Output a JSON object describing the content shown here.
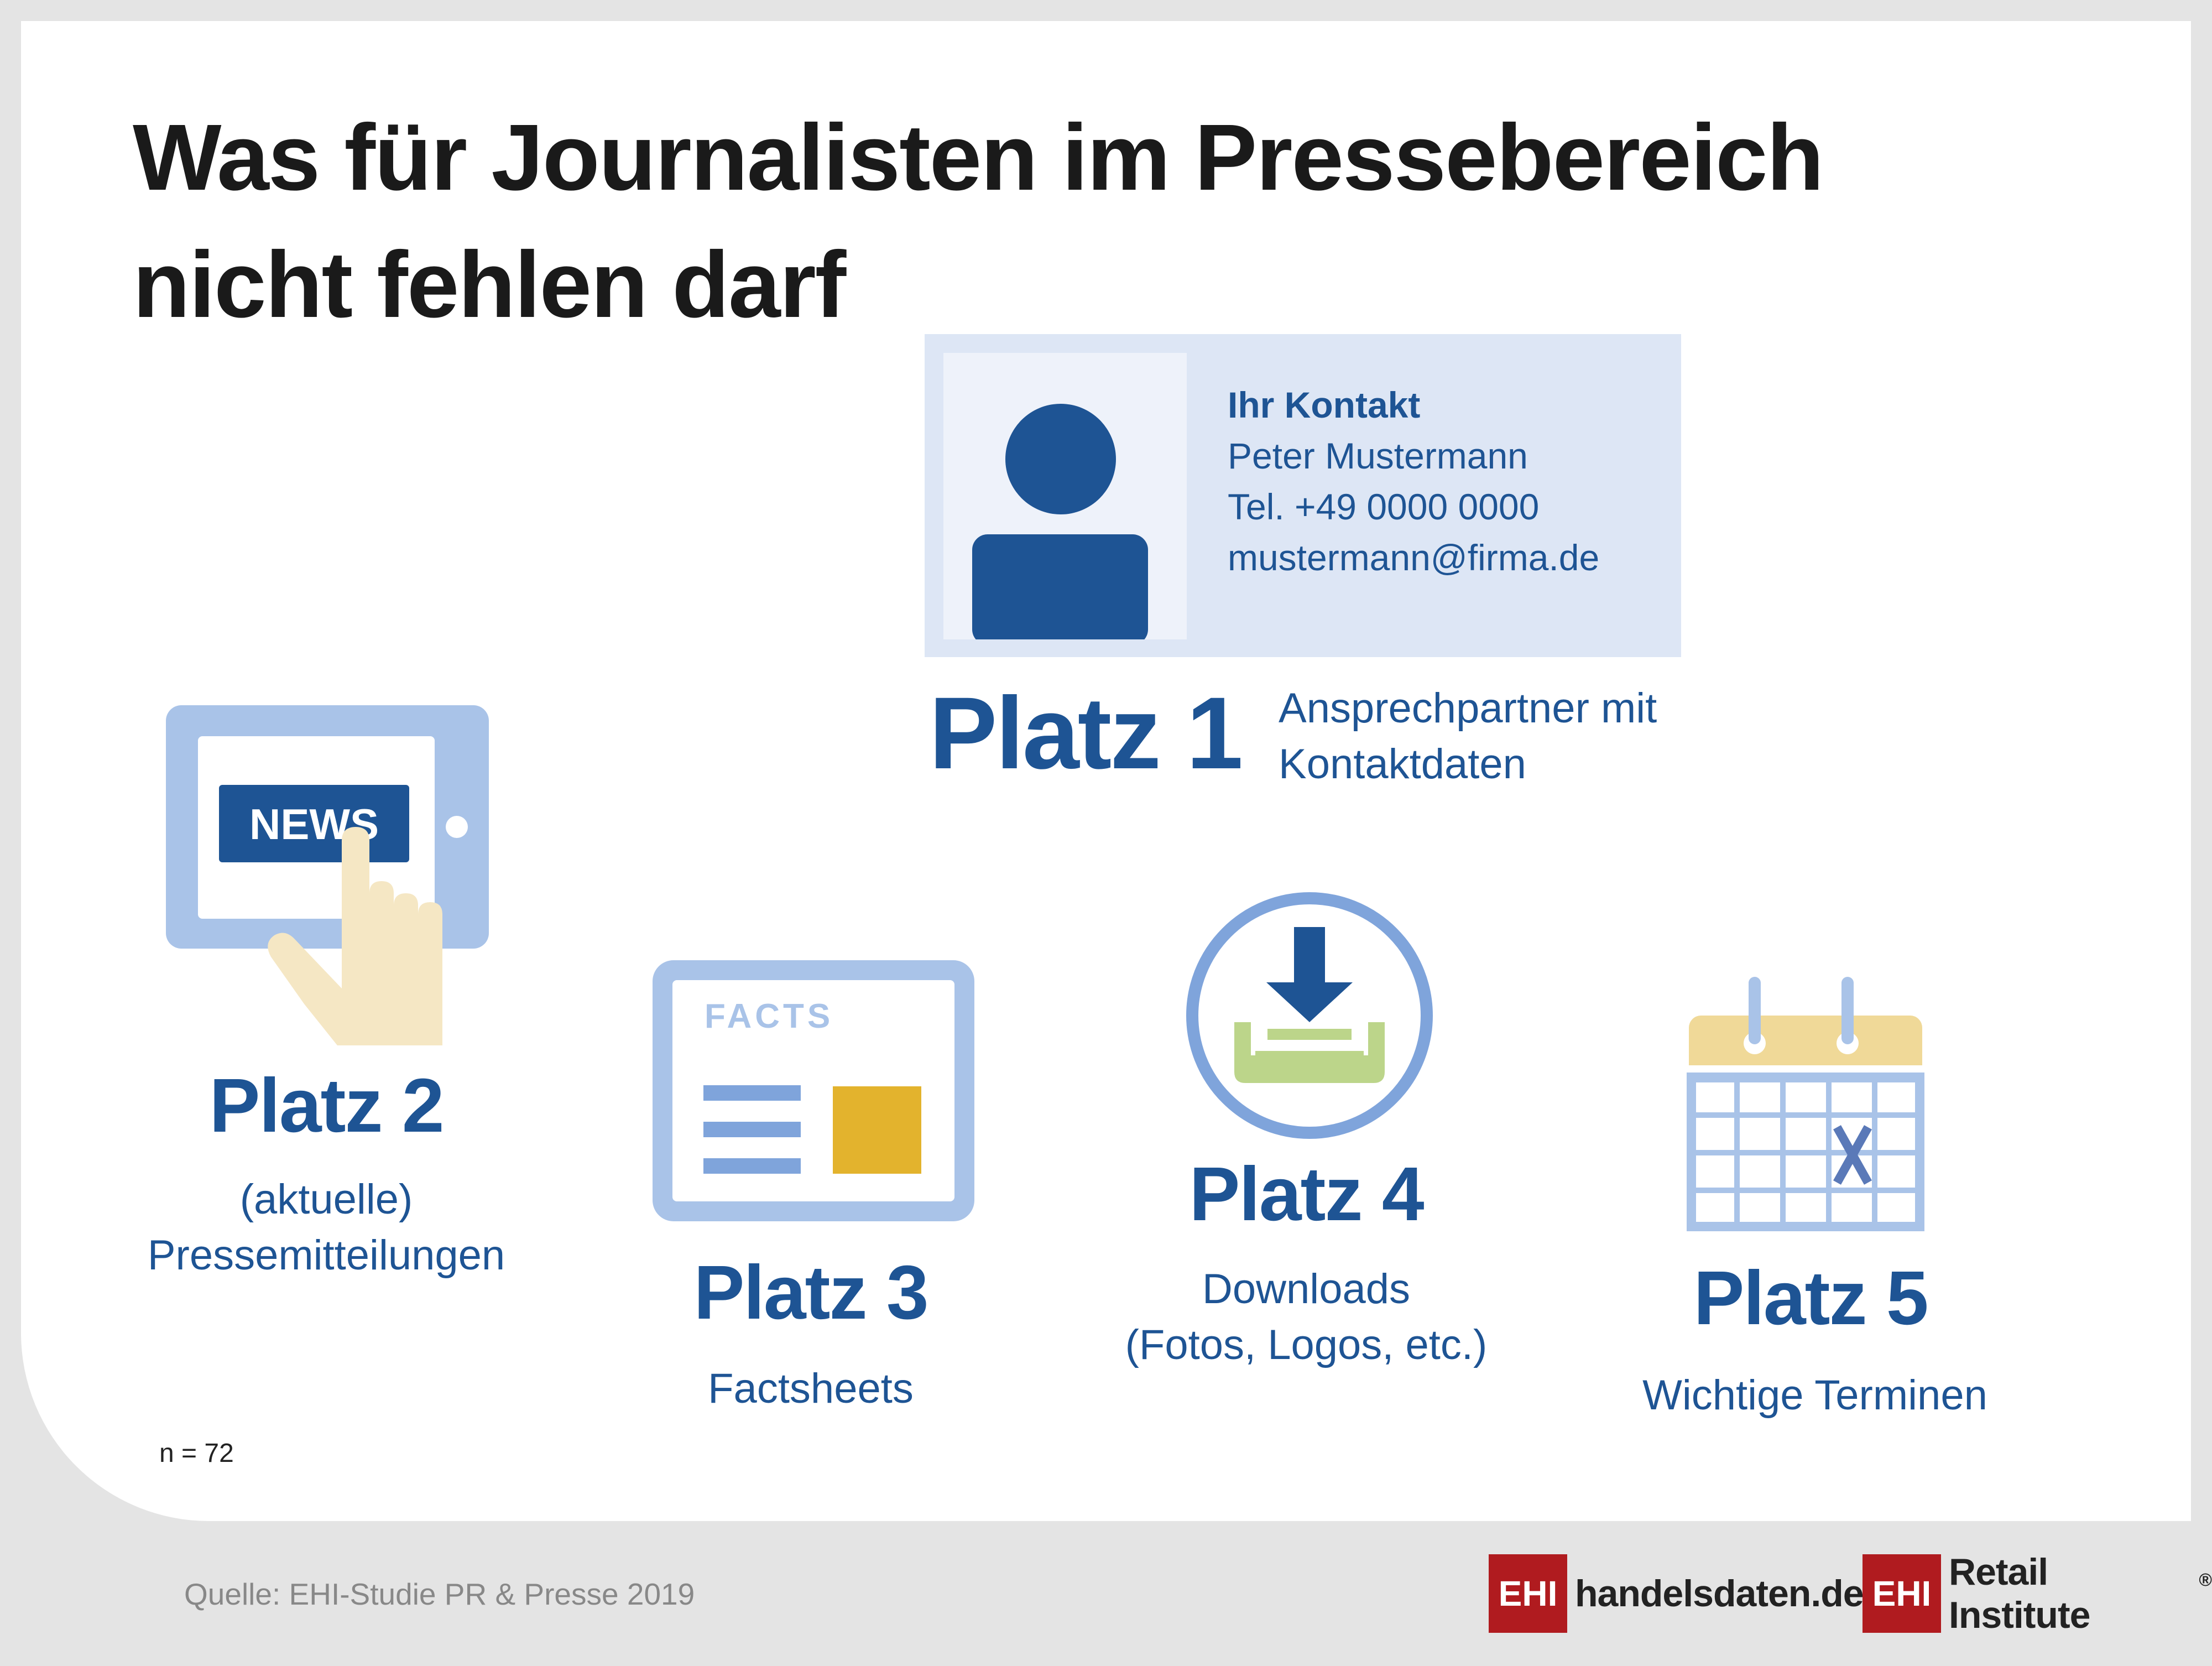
{
  "title": "Was für Journalisten im Pressebereich\nnicht fehlen darf",
  "contact_card": {
    "heading": "Ihr Kontakt",
    "name": "Peter Mustermann",
    "phone": "Tel. +49 0000 0000",
    "email": "mustermann@firma.de",
    "icon": "person-icon"
  },
  "ranks": [
    {
      "label": "Platz 1",
      "description": "Ansprechpartner mit\nKontaktdaten",
      "icon": "contact-card-icon"
    },
    {
      "label": "Platz 2",
      "description": "(aktuelle)\nPressemitteilungen",
      "icon": "tablet-news-icon",
      "icon_text": "NEWS"
    },
    {
      "label": "Platz 3",
      "description": "Factsheets",
      "icon": "factsheet-icon",
      "icon_text": "FACTS"
    },
    {
      "label": "Platz 4",
      "description": "Downloads\n(Fotos, Logos, etc.)",
      "icon": "download-icon"
    },
    {
      "label": "Platz 5",
      "description": "Wichtige Terminen",
      "icon": "calendar-icon"
    }
  ],
  "sample_size": "n = 72",
  "source": "Quelle: EHI-Studie PR & Presse 2019",
  "logos": [
    {
      "box": "EHI",
      "text": "handelsdaten.de"
    },
    {
      "box": "EHI",
      "text": "Retail Institute",
      "mark": "®"
    }
  ],
  "colors": {
    "primary_blue": "#1e5494",
    "light_blue": "#a9c3e8",
    "pale_blue": "#dde6f5",
    "accent_yellow": "#e3b32d",
    "accent_green": "#bcd58a",
    "calendar_top": "#f0d998",
    "logo_red": "#b01b1f"
  }
}
